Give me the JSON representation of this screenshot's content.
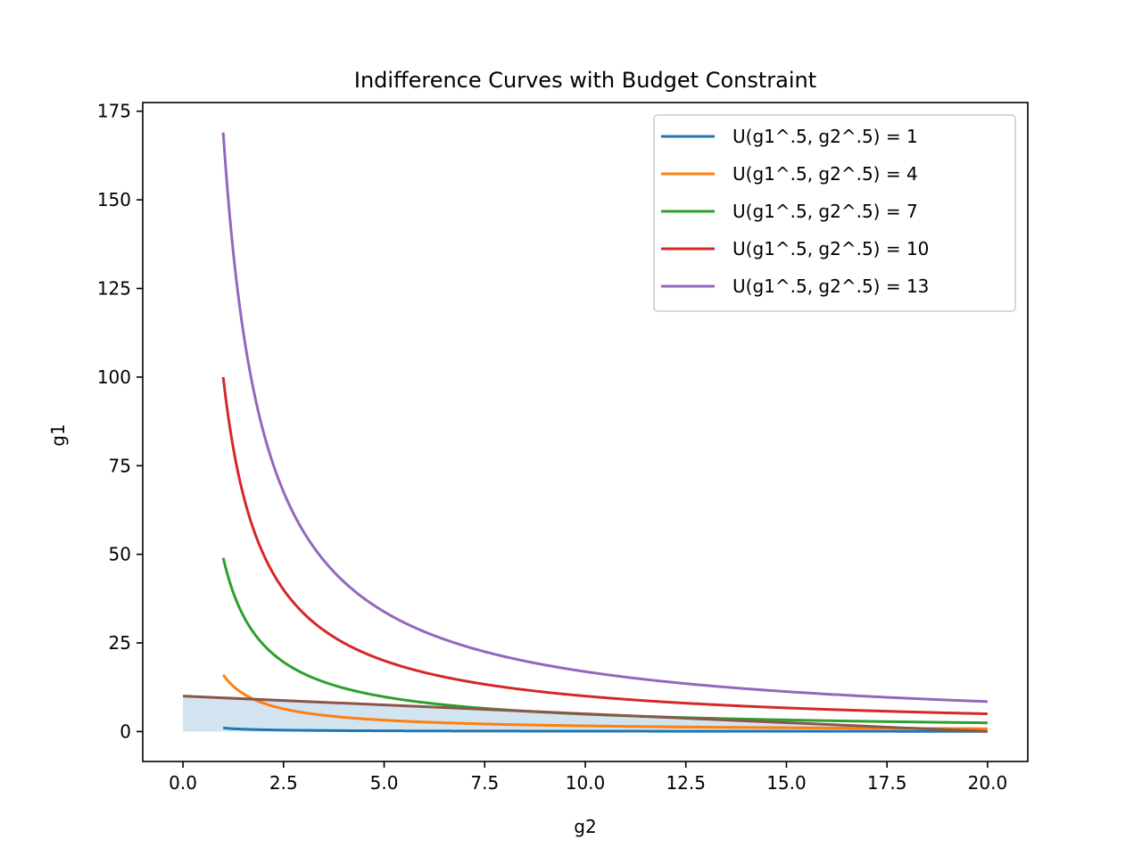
{
  "chart_data": {
    "type": "line",
    "title": "Indifference Curves with Budget Constraint",
    "xlabel": "g2",
    "ylabel": "g1",
    "xlim": [
      -1,
      21
    ],
    "ylim": [
      -8.45,
      177.45
    ],
    "xticks": [
      0.0,
      2.5,
      5.0,
      7.5,
      10.0,
      12.5,
      15.0,
      17.5,
      20.0
    ],
    "xtick_labels": [
      "0.0",
      "2.5",
      "5.0",
      "7.5",
      "10.0",
      "12.5",
      "15.0",
      "17.5",
      "20.0"
    ],
    "yticks": [
      0,
      25,
      50,
      75,
      100,
      125,
      150,
      175
    ],
    "ytick_labels": [
      "0",
      "25",
      "50",
      "75",
      "100",
      "125",
      "150",
      "175"
    ],
    "grid": false,
    "legend_position": "top-right",
    "series": [
      {
        "name": "U(g1^.5, g2^.5) = 1",
        "utility": 1,
        "color": "#1f77b4",
        "x": [
          1,
          1.25,
          1.5,
          2,
          2.5,
          3,
          4,
          5,
          6,
          8,
          10,
          12,
          14,
          16,
          18,
          20
        ],
        "y": [
          1,
          0.8,
          0.67,
          0.5,
          0.4,
          0.33,
          0.25,
          0.2,
          0.17,
          0.13,
          0.1,
          0.08,
          0.07,
          0.06,
          0.06,
          0.05
        ]
      },
      {
        "name": "U(g1^.5, g2^.5) = 4",
        "utility": 4,
        "color": "#ff7f0e",
        "x": [
          1,
          1.25,
          1.5,
          2,
          2.5,
          3,
          4,
          5,
          6,
          8,
          10,
          12,
          14,
          16,
          18,
          20
        ],
        "y": [
          16,
          12.8,
          10.67,
          8,
          6.4,
          5.33,
          4,
          3.2,
          2.67,
          2,
          1.6,
          1.33,
          1.14,
          1,
          0.89,
          0.8
        ]
      },
      {
        "name": "U(g1^.5, g2^.5) = 7",
        "utility": 7,
        "color": "#2ca02c",
        "x": [
          1,
          1.25,
          1.5,
          2,
          2.5,
          3,
          4,
          5,
          6,
          8,
          10,
          12,
          14,
          16,
          18,
          20
        ],
        "y": [
          49,
          39.2,
          32.67,
          24.5,
          19.6,
          16.33,
          12.25,
          9.8,
          8.17,
          6.13,
          4.9,
          4.08,
          3.5,
          3.06,
          2.72,
          2.45
        ]
      },
      {
        "name": "U(g1^.5, g2^.5) = 10",
        "utility": 10,
        "color": "#d62728",
        "x": [
          1,
          1.25,
          1.5,
          2,
          2.5,
          3,
          4,
          5,
          6,
          8,
          10,
          12,
          14,
          16,
          18,
          20
        ],
        "y": [
          100,
          80,
          66.67,
          50,
          40,
          33.33,
          25,
          20,
          16.67,
          12.5,
          10,
          8.33,
          7.14,
          6.25,
          5.56,
          5
        ]
      },
      {
        "name": "U(g1^.5, g2^.5) = 13",
        "utility": 13,
        "color": "#9467bd",
        "x": [
          1,
          1.25,
          1.5,
          2,
          2.5,
          3,
          4,
          5,
          6,
          8,
          10,
          12,
          14,
          16,
          18,
          20
        ],
        "y": [
          169,
          135.2,
          112.67,
          84.5,
          67.6,
          56.33,
          42.25,
          33.8,
          28.17,
          21.13,
          16.9,
          14.08,
          12.07,
          10.56,
          9.39,
          8.45
        ]
      }
    ],
    "budget_line": {
      "color": "#8c564b",
      "x": [
        0,
        20
      ],
      "y": [
        10,
        0
      ]
    },
    "budget_fill": {
      "color": "#1f77b4",
      "opacity": 0.2,
      "x": [
        0,
        20
      ],
      "y_upper": [
        10,
        0
      ],
      "y_lower": [
        0,
        0
      ]
    }
  }
}
